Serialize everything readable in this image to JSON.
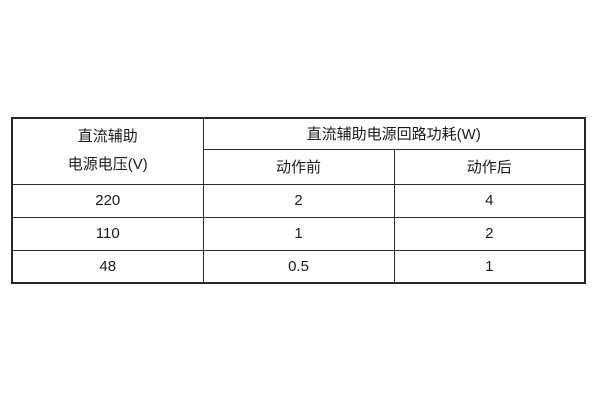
{
  "table": {
    "voltage_header": {
      "line1": "直流辅助",
      "line2": "电源电压(V)"
    },
    "group_header": "直流辅助电源回路功耗(W)",
    "sub_headers": {
      "before": "动作前",
      "after": "动作后"
    },
    "rows": [
      {
        "voltage": "220",
        "before": "2",
        "after": "4"
      },
      {
        "voltage": "110",
        "before": "1",
        "after": "2"
      },
      {
        "voltage": "48",
        "before": "0.5",
        "after": "1"
      }
    ]
  }
}
